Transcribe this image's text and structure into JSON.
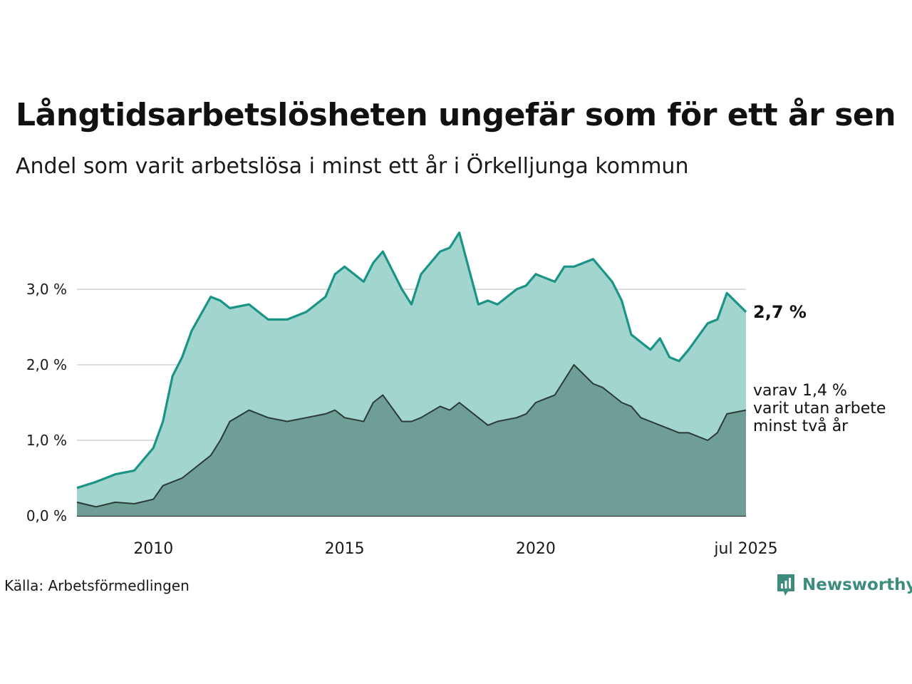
{
  "title": "Långtidsarbetslösheten ungefär som för ett år sen",
  "subtitle": "Andel som varit arbetslösa i minst ett år i Örkelljunga kommun",
  "source": "Källa: Arbetsförmedlingen",
  "brand": {
    "name": "Newsworthy",
    "icon": "newsworthy-logo-icon"
  },
  "colors": {
    "total_line": "#1a9486",
    "total_fill": "#a3d5cf",
    "sub_line": "#2a3b36",
    "sub_fill": "#6f9e97",
    "grid": "#dddddd"
  },
  "chart_data": {
    "type": "area",
    "y_unit": "%",
    "ylim": [
      0,
      4.0
    ],
    "xlim": [
      2008.0,
      2025.5
    ],
    "y_ticks": [
      {
        "value": 0,
        "label": "0,0 %"
      },
      {
        "value": 1,
        "label": "1,0 %"
      },
      {
        "value": 2,
        "label": "2,0 %"
      },
      {
        "value": 3,
        "label": "3,0 %"
      }
    ],
    "x_ticks": [
      {
        "value": 2010,
        "label": "2010"
      },
      {
        "value": 2015,
        "label": "2015"
      },
      {
        "value": 2020,
        "label": "2020"
      },
      {
        "value": 2025.5,
        "label": "jul 2025"
      }
    ],
    "grid": true,
    "end_label": "2,7 %",
    "annotation_lines": [
      "varav 1,4 %",
      "varit utan arbete",
      "minst två år"
    ],
    "series": [
      {
        "key": "total",
        "x": [
          2008.0,
          2008.5,
          2009.0,
          2009.5,
          2010.0,
          2010.25,
          2010.5,
          2010.75,
          2011.0,
          2011.5,
          2011.75,
          2012.0,
          2012.5,
          2013.0,
          2013.5,
          2014.0,
          2014.5,
          2014.75,
          2015.0,
          2015.5,
          2015.75,
          2016.0,
          2016.5,
          2016.75,
          2017.0,
          2017.5,
          2017.75,
          2018.0,
          2018.5,
          2018.75,
          2019.0,
          2019.5,
          2019.75,
          2020.0,
          2020.5,
          2020.75,
          2021.0,
          2021.5,
          2021.75,
          2022.0,
          2022.25,
          2022.5,
          2022.75,
          2023.0,
          2023.25,
          2023.5,
          2023.75,
          2024.0,
          2024.5,
          2024.75,
          2025.0,
          2025.5
        ],
        "values": [
          0.37,
          0.45,
          0.55,
          0.6,
          0.9,
          1.25,
          1.85,
          2.1,
          2.45,
          2.9,
          2.85,
          2.75,
          2.8,
          2.6,
          2.6,
          2.7,
          2.9,
          3.2,
          3.3,
          3.1,
          3.35,
          3.5,
          3.0,
          2.8,
          3.2,
          3.5,
          3.55,
          3.75,
          2.8,
          2.85,
          2.8,
          3.0,
          3.05,
          3.2,
          3.1,
          3.3,
          3.3,
          3.4,
          3.25,
          3.1,
          2.85,
          2.4,
          2.3,
          2.2,
          2.35,
          2.1,
          2.05,
          2.2,
          2.55,
          2.6,
          2.95,
          2.7
        ]
      },
      {
        "key": "two_years",
        "x": [
          2008.0,
          2008.5,
          2009.0,
          2009.5,
          2010.0,
          2010.25,
          2010.5,
          2010.75,
          2011.0,
          2011.5,
          2011.75,
          2012.0,
          2012.5,
          2013.0,
          2013.5,
          2014.0,
          2014.5,
          2014.75,
          2015.0,
          2015.5,
          2015.75,
          2016.0,
          2016.5,
          2016.75,
          2017.0,
          2017.5,
          2017.75,
          2018.0,
          2018.5,
          2018.75,
          2019.0,
          2019.5,
          2019.75,
          2020.0,
          2020.5,
          2020.75,
          2021.0,
          2021.5,
          2021.75,
          2022.0,
          2022.25,
          2022.5,
          2022.75,
          2023.0,
          2023.25,
          2023.5,
          2023.75,
          2024.0,
          2024.5,
          2024.75,
          2025.0,
          2025.5
        ],
        "values": [
          0.18,
          0.12,
          0.18,
          0.16,
          0.22,
          0.4,
          0.45,
          0.5,
          0.6,
          0.8,
          1.0,
          1.25,
          1.4,
          1.3,
          1.25,
          1.3,
          1.35,
          1.4,
          1.3,
          1.25,
          1.5,
          1.6,
          1.25,
          1.25,
          1.3,
          1.45,
          1.4,
          1.5,
          1.3,
          1.2,
          1.25,
          1.3,
          1.35,
          1.5,
          1.6,
          1.8,
          2.0,
          1.75,
          1.7,
          1.6,
          1.5,
          1.45,
          1.3,
          1.25,
          1.2,
          1.15,
          1.1,
          1.1,
          1.0,
          1.1,
          1.35,
          1.4
        ]
      }
    ]
  }
}
